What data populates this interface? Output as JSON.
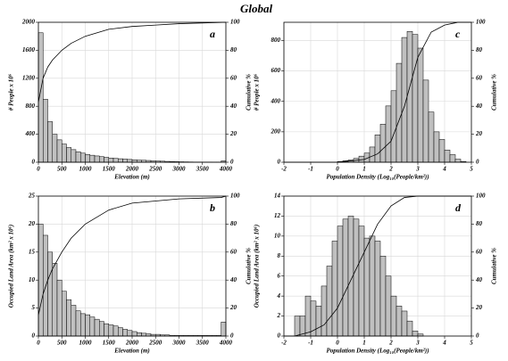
{
  "title": "Global",
  "chart_data": [
    {
      "type": "histogram",
      "label": "a",
      "xlabel": "Elevation (m)",
      "ylabel": "# People x 10⁶",
      "y2label": "Cumulative %",
      "bins": [
        0,
        100,
        200,
        300,
        400,
        500,
        600,
        700,
        800,
        900,
        1000,
        1100,
        1200,
        1300,
        1400,
        1500,
        1600,
        1700,
        1800,
        1900,
        2000,
        2100,
        2200,
        2300,
        2400,
        2500,
        2600,
        2700,
        2800,
        2900,
        3000,
        3100,
        3200,
        3300,
        3400,
        3500,
        3600,
        3700,
        3800,
        3900,
        4000
      ],
      "values": [
        1850,
        900,
        580,
        400,
        320,
        260,
        210,
        180,
        150,
        130,
        110,
        100,
        90,
        80,
        70,
        60,
        55,
        50,
        45,
        40,
        35,
        30,
        28,
        25,
        20,
        18,
        15,
        12,
        10,
        8,
        6,
        5,
        4,
        3,
        3,
        2,
        2,
        1,
        1,
        20
      ],
      "color": "#c0c0c0",
      "line": {
        "x": [
          0,
          100,
          200,
          300,
          500,
          700,
          1000,
          1500,
          2000,
          2500,
          3000,
          4000
        ],
        "values": [
          43,
          60,
          68,
          73,
          80,
          85,
          90,
          95,
          97,
          98,
          99,
          100
        ],
        "axis": "y2"
      },
      "xlim": [
        0,
        4000
      ],
      "xticks": [
        0,
        500,
        1000,
        1500,
        2000,
        2500,
        3000,
        3500,
        4000
      ],
      "ylim": [
        0,
        2000
      ],
      "yticks": [
        0,
        400,
        800,
        1200,
        1600,
        2000
      ],
      "y2lim": [
        0,
        100
      ],
      "y2ticks": [
        0,
        20,
        40,
        60,
        80,
        100
      ],
      "grid": true
    },
    {
      "type": "histogram",
      "label": "c",
      "xlabel": "Population Density (Log₁₀(People/km²))",
      "ylabel": "# People x 10⁶",
      "y2label": "Cumulative %",
      "bins": [
        -2,
        -1.8,
        -1.6,
        -1.4,
        -1.2,
        -1,
        -0.8,
        -0.6,
        -0.4,
        -0.2,
        0,
        0.2,
        0.4,
        0.6,
        0.8,
        1,
        1.2,
        1.4,
        1.6,
        1.8,
        2,
        2.2,
        2.4,
        2.6,
        2.8,
        3,
        3.2,
        3.4,
        3.6,
        3.8,
        4,
        4.2,
        4.4,
        4.6,
        4.8,
        5
      ],
      "values": [
        0,
        0,
        0,
        0,
        0,
        0,
        0,
        0,
        0,
        0,
        5,
        10,
        15,
        25,
        40,
        60,
        100,
        180,
        250,
        370,
        470,
        650,
        820,
        860,
        840,
        750,
        540,
        330,
        200,
        150,
        80,
        50,
        20,
        5,
        0
      ],
      "color": "#c0c0c0",
      "line": {
        "x": [
          -2,
          0,
          1,
          1.5,
          2,
          2.5,
          3,
          3.5,
          4,
          4.5,
          5
        ],
        "values": [
          0,
          0,
          2,
          6,
          15,
          40,
          75,
          93,
          98,
          100,
          100
        ],
        "axis": "y2"
      },
      "xlim": [
        -2,
        5
      ],
      "xticks": [
        -2,
        -1,
        0,
        1,
        2,
        3,
        4,
        5
      ],
      "ylim": [
        0,
        920
      ],
      "yticks": [
        0,
        200,
        400,
        600,
        800
      ],
      "y2lim": [
        0,
        100
      ],
      "y2ticks": [
        0,
        20,
        40,
        60,
        80,
        100
      ],
      "grid": true
    },
    {
      "type": "histogram",
      "label": "b",
      "xlabel": "Elevation (m)",
      "ylabel": "Occupied Land Area (km² x 10⁶)",
      "y2label": "Cumulative %",
      "bins": [
        0,
        100,
        200,
        300,
        400,
        500,
        600,
        700,
        800,
        900,
        1000,
        1100,
        1200,
        1300,
        1400,
        1500,
        1600,
        1700,
        1800,
        1900,
        2000,
        2100,
        2200,
        2300,
        2400,
        2500,
        2600,
        2700,
        2800,
        2900,
        3000,
        3100,
        3200,
        3300,
        3400,
        3500,
        3600,
        3700,
        3800,
        3900,
        4000
      ],
      "values": [
        20,
        18,
        15,
        13,
        10,
        8,
        6.5,
        5.5,
        4.5,
        4,
        3.8,
        3.4,
        3,
        2.6,
        2.2,
        2,
        1.8,
        1.5,
        1.2,
        1,
        0.8,
        0.6,
        0.5,
        0.4,
        0.3,
        0.3,
        0.2,
        0.2,
        0.1,
        0.1,
        0.1,
        0.1,
        0.1,
        0.1,
        0.1,
        0.1,
        0.1,
        0.1,
        0.1,
        2.5
      ],
      "color": "#c0c0c0",
      "line": {
        "x": [
          0,
          100,
          200,
          300,
          500,
          700,
          1000,
          1500,
          2000,
          3000,
          3900,
          4000
        ],
        "values": [
          15,
          30,
          40,
          48,
          60,
          70,
          80,
          90,
          95,
          98,
          99,
          100
        ],
        "axis": "y2"
      },
      "xlim": [
        0,
        4000
      ],
      "xticks": [
        0,
        500,
        1000,
        1500,
        2000,
        2500,
        3000,
        3500,
        4000
      ],
      "ylim": [
        0,
        25
      ],
      "yticks": [
        0,
        5,
        10,
        15,
        20,
        25
      ],
      "y2lim": [
        0,
        100
      ],
      "y2ticks": [
        0,
        20,
        40,
        60,
        80,
        100
      ],
      "grid": true
    },
    {
      "type": "histogram",
      "label": "d",
      "xlabel": "Population Density (Log₁₀(People/km²))",
      "ylabel": "Occupied Land Area (km² x 10⁶)",
      "y2label": "Cumulative %",
      "bins": [
        -2,
        -1.8,
        -1.6,
        -1.4,
        -1.2,
        -1,
        -0.8,
        -0.6,
        -0.4,
        -0.2,
        0,
        0.2,
        0.4,
        0.6,
        0.8,
        1,
        1.2,
        1.4,
        1.6,
        1.8,
        2,
        2.2,
        2.4,
        2.6,
        2.8,
        3,
        3.2,
        3.4,
        3.6,
        3.8,
        4,
        4.2,
        4.4,
        4.6,
        4.8,
        5
      ],
      "values": [
        0,
        0,
        2,
        2,
        4,
        3.5,
        3,
        5,
        7,
        9.5,
        11,
        11.7,
        12,
        11.7,
        11,
        9.8,
        10,
        9.5,
        8,
        6,
        4,
        3,
        2.5,
        1.5,
        0.5,
        0.2,
        0,
        0,
        0,
        0,
        0,
        0,
        0,
        0,
        0
      ],
      "color": "#c0c0c0",
      "line": {
        "x": [
          -2,
          -1.6,
          -1,
          -0.5,
          0,
          0.5,
          1,
          1.5,
          2,
          2.5,
          3,
          5
        ],
        "values": [
          0,
          0,
          3,
          8,
          20,
          40,
          60,
          80,
          93,
          99,
          100,
          100
        ],
        "axis": "y2"
      },
      "xlim": [
        -2,
        5
      ],
      "xticks": [
        -2,
        -1,
        0,
        1,
        2,
        3,
        4,
        5
      ],
      "ylim": [
        0,
        14
      ],
      "yticks": [
        0,
        2,
        4,
        6,
        8,
        10,
        12,
        14
      ],
      "y2lim": [
        0,
        100
      ],
      "y2ticks": [
        0,
        20,
        40,
        60,
        80,
        100
      ],
      "grid": true
    }
  ]
}
